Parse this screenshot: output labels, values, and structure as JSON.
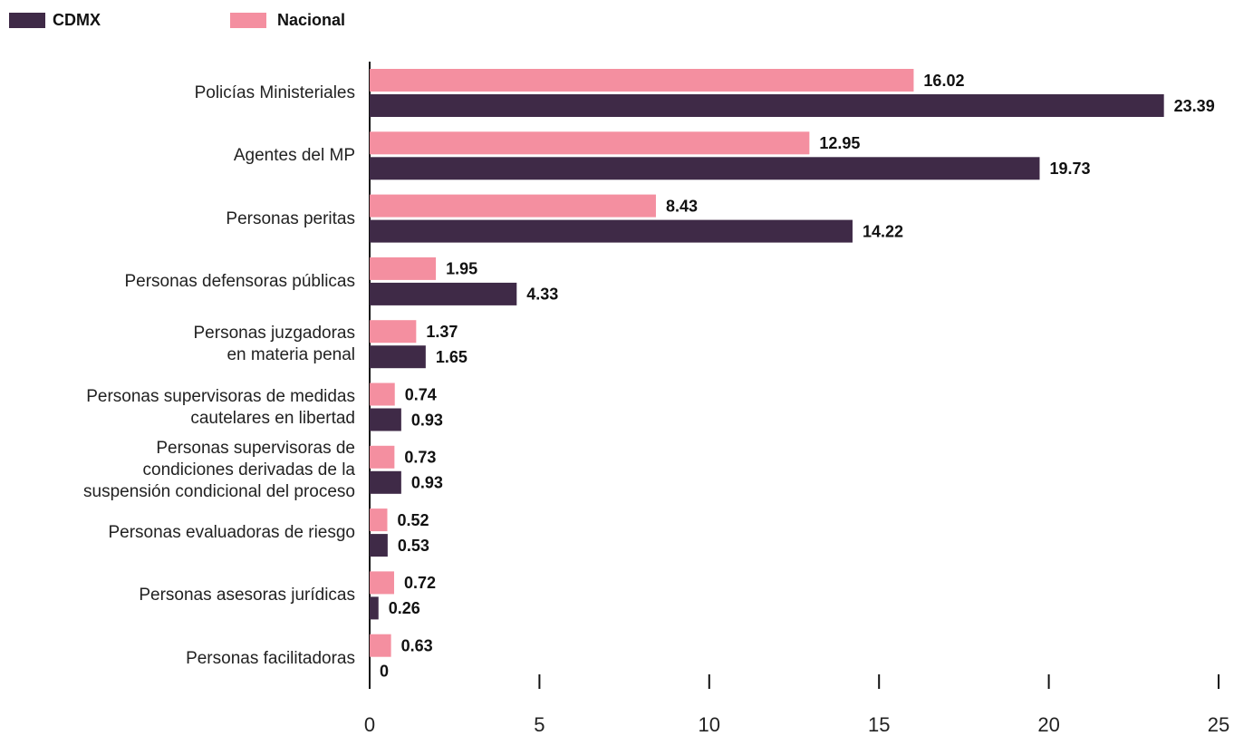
{
  "chart_data": {
    "type": "bar",
    "orientation": "horizontal",
    "categories": [
      "Policías Ministeriales",
      "Agentes del MP",
      "Personas peritas",
      "Personas defensoras públicas",
      "Personas juzgadoras\nen materia penal",
      "Personas supervisoras de medidas\ncautelares en libertad",
      "Personas supervisoras de\ncondiciones derivadas de la\nsuspensión condicional del proceso",
      "Personas evaluadoras de riesgo",
      "Personas asesoras jurídicas",
      "Personas facilitadoras"
    ],
    "series": [
      {
        "name": "CDMX",
        "color": "#3f2a47",
        "values": [
          23.39,
          19.73,
          14.22,
          4.33,
          1.65,
          0.93,
          0.93,
          0.53,
          0.26,
          0
        ]
      },
      {
        "name": "Nacional",
        "color": "#f48fa0",
        "values": [
          16.02,
          12.95,
          8.43,
          1.95,
          1.37,
          0.74,
          0.73,
          0.52,
          0.72,
          0.63
        ]
      }
    ],
    "xlim": [
      0,
      25
    ],
    "xticks": [
      0,
      5,
      10,
      15,
      20,
      25
    ],
    "legend": "top-left"
  }
}
